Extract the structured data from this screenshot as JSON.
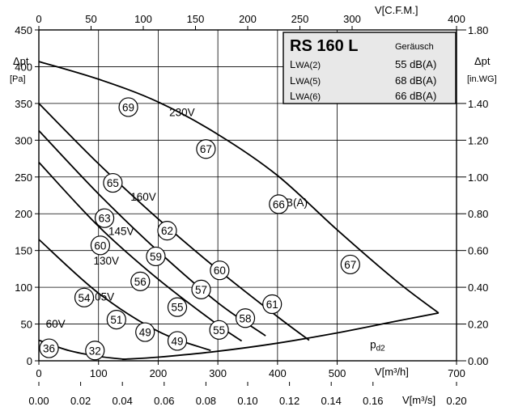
{
  "chart_data": {
    "type": "line",
    "title": "RS 160 L",
    "axes": {
      "x_bottom": {
        "label": "V[m³/h]",
        "range": [
          0,
          700
        ],
        "ticks": [
          "0",
          "100",
          "200",
          "300",
          "400",
          "500",
          "700"
        ]
      },
      "x_top": {
        "label": "V[C.F.M.]",
        "range": [
          0,
          400
        ],
        "ticks": [
          "0",
          "50",
          "100",
          "150",
          "200",
          "250",
          "300",
          "400"
        ]
      },
      "x_bottom2": {
        "label": "V[m³/s]",
        "range": [
          0,
          0.2
        ],
        "ticks": [
          "0.00",
          "0.02",
          "0.04",
          "0.06",
          "0.08",
          "0.10",
          "0.12",
          "0.14",
          "0.16",
          "0.20"
        ]
      },
      "y_left": {
        "label": "Δpt",
        "unit": "[Pa]",
        "range": [
          0,
          450
        ],
        "ticks": [
          "0",
          "50",
          "100",
          "150",
          "200",
          "250",
          "300",
          "350",
          "400",
          "450"
        ]
      },
      "y_right": {
        "label": "Δpt",
        "unit": "[in.WG]",
        "range": [
          0,
          1.8
        ],
        "ticks": [
          "0.00",
          "0.20",
          "0.40",
          "0.60",
          "0.80",
          "1.00",
          "1.20",
          "1.40",
          "1.80"
        ]
      }
    },
    "grid": true,
    "series": [
      {
        "name": "230V",
        "x": [
          0,
          100,
          200,
          300,
          400,
          500,
          600,
          670
        ],
        "y": [
          407,
          383,
          352,
          308,
          252,
          178,
          108,
          65
        ]
      },
      {
        "name": "160V",
        "x": [
          0,
          100,
          200,
          300,
          400,
          453
        ],
        "y": [
          350,
          268,
          193,
          124,
          60,
          28
        ]
      },
      {
        "name": "145V",
        "x": [
          0,
          100,
          200,
          300,
          380
        ],
        "y": [
          313,
          227,
          149,
          79,
          34
        ]
      },
      {
        "name": "130V",
        "x": [
          0,
          100,
          200,
          300,
          340
        ],
        "y": [
          270,
          183,
          111,
          49,
          27
        ]
      },
      {
        "name": "105V",
        "x": [
          0,
          100,
          200,
          288
        ],
        "y": [
          165,
          92,
          40,
          14
        ]
      },
      {
        "name": "60V",
        "x": [
          0,
          50,
          100,
          145
        ],
        "y": [
          28,
          14,
          6,
          2
        ]
      },
      {
        "name": "pd2",
        "x": [
          140,
          200,
          300,
          400,
          500,
          600,
          670
        ],
        "y": [
          2,
          5,
          13,
          24,
          38,
          54,
          65
        ]
      }
    ],
    "curve_labels": [
      {
        "text": "230V",
        "x": 240,
        "y": 333
      },
      {
        "text": "160V",
        "x": 175,
        "y": 218
      },
      {
        "text": "145V",
        "x": 138,
        "y": 171
      },
      {
        "text": "130V",
        "x": 113,
        "y": 131
      },
      {
        "text": "105V",
        "x": 105,
        "y": 82
      },
      {
        "text": "60V",
        "x": 28,
        "y": 45
      },
      {
        "text": "dB(A)",
        "x": 427,
        "y": 210
      }
    ],
    "pd2_label": {
      "text": "p",
      "sub": "d2",
      "x": 555,
      "y": 17
    },
    "markers": [
      {
        "value": "69",
        "x": 150,
        "y": 345
      },
      {
        "value": "67",
        "x": 280,
        "y": 288
      },
      {
        "value": "66",
        "x": 402,
        "y": 213
      },
      {
        "value": "67",
        "x": 522,
        "y": 131
      },
      {
        "value": "65",
        "x": 124,
        "y": 242
      },
      {
        "value": "63",
        "x": 110,
        "y": 194
      },
      {
        "value": "62",
        "x": 215,
        "y": 177
      },
      {
        "value": "60",
        "x": 103,
        "y": 157
      },
      {
        "value": "59",
        "x": 196,
        "y": 142
      },
      {
        "value": "60",
        "x": 303,
        "y": 123
      },
      {
        "value": "56",
        "x": 170,
        "y": 108
      },
      {
        "value": "57",
        "x": 272,
        "y": 97
      },
      {
        "value": "61",
        "x": 391,
        "y": 77
      },
      {
        "value": "54",
        "x": 76,
        "y": 86
      },
      {
        "value": "55",
        "x": 232,
        "y": 73
      },
      {
        "value": "51",
        "x": 130,
        "y": 56
      },
      {
        "value": "58",
        "x": 346,
        "y": 58
      },
      {
        "value": "49",
        "x": 178,
        "y": 39
      },
      {
        "value": "55",
        "x": 302,
        "y": 42
      },
      {
        "value": "49",
        "x": 232,
        "y": 27
      },
      {
        "value": "36",
        "x": 17,
        "y": 17
      },
      {
        "value": "32",
        "x": 94,
        "y": 14
      }
    ]
  },
  "info_box": {
    "title": "RS 160 L",
    "subtitle": "Geräusch",
    "rows": [
      {
        "label": "L",
        "sub": "WA(2)",
        "value": "55 dB(A)"
      },
      {
        "label": "L",
        "sub": "WA(5)",
        "value": "68 dB(A)"
      },
      {
        "label": "L",
        "sub": "WA(6)",
        "value": "66 dB(A)"
      }
    ]
  }
}
